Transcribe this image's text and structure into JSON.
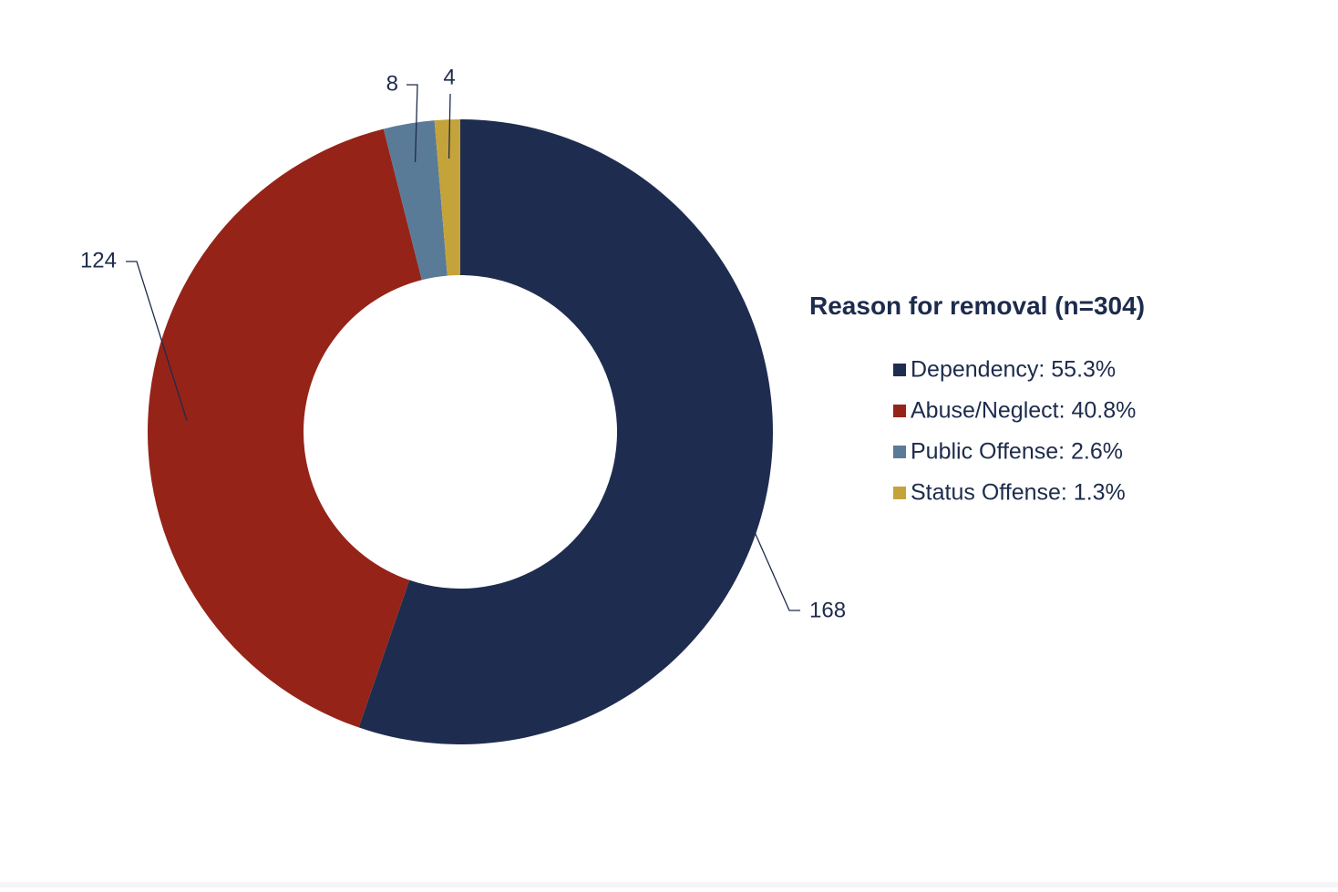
{
  "chart_data": {
    "type": "donut",
    "title": "",
    "legend_title": "Reason for removal (n=304)",
    "legend_position": "right",
    "start_angle_deg": 0,
    "direction": "clockwise",
    "slices": [
      {
        "name": "Dependency",
        "value": 168,
        "percent_label": "Dependency: 55.3%",
        "color": "#1e2d4f"
      },
      {
        "name": "Abuse/Neglect",
        "value": 124,
        "percent_label": "Abuse/Neglect: 40.8%",
        "color": "#952318"
      },
      {
        "name": "Public Offense",
        "value": 8,
        "percent_label": "Public Offense: 2.6%",
        "color": "#5a7b98"
      },
      {
        "name": "Status Offense",
        "value": 4,
        "percent_label": "Status Offense: 1.3%",
        "color": "#c4a43a"
      }
    ],
    "data_labels": [
      "168",
      "124",
      "8",
      "4"
    ]
  }
}
